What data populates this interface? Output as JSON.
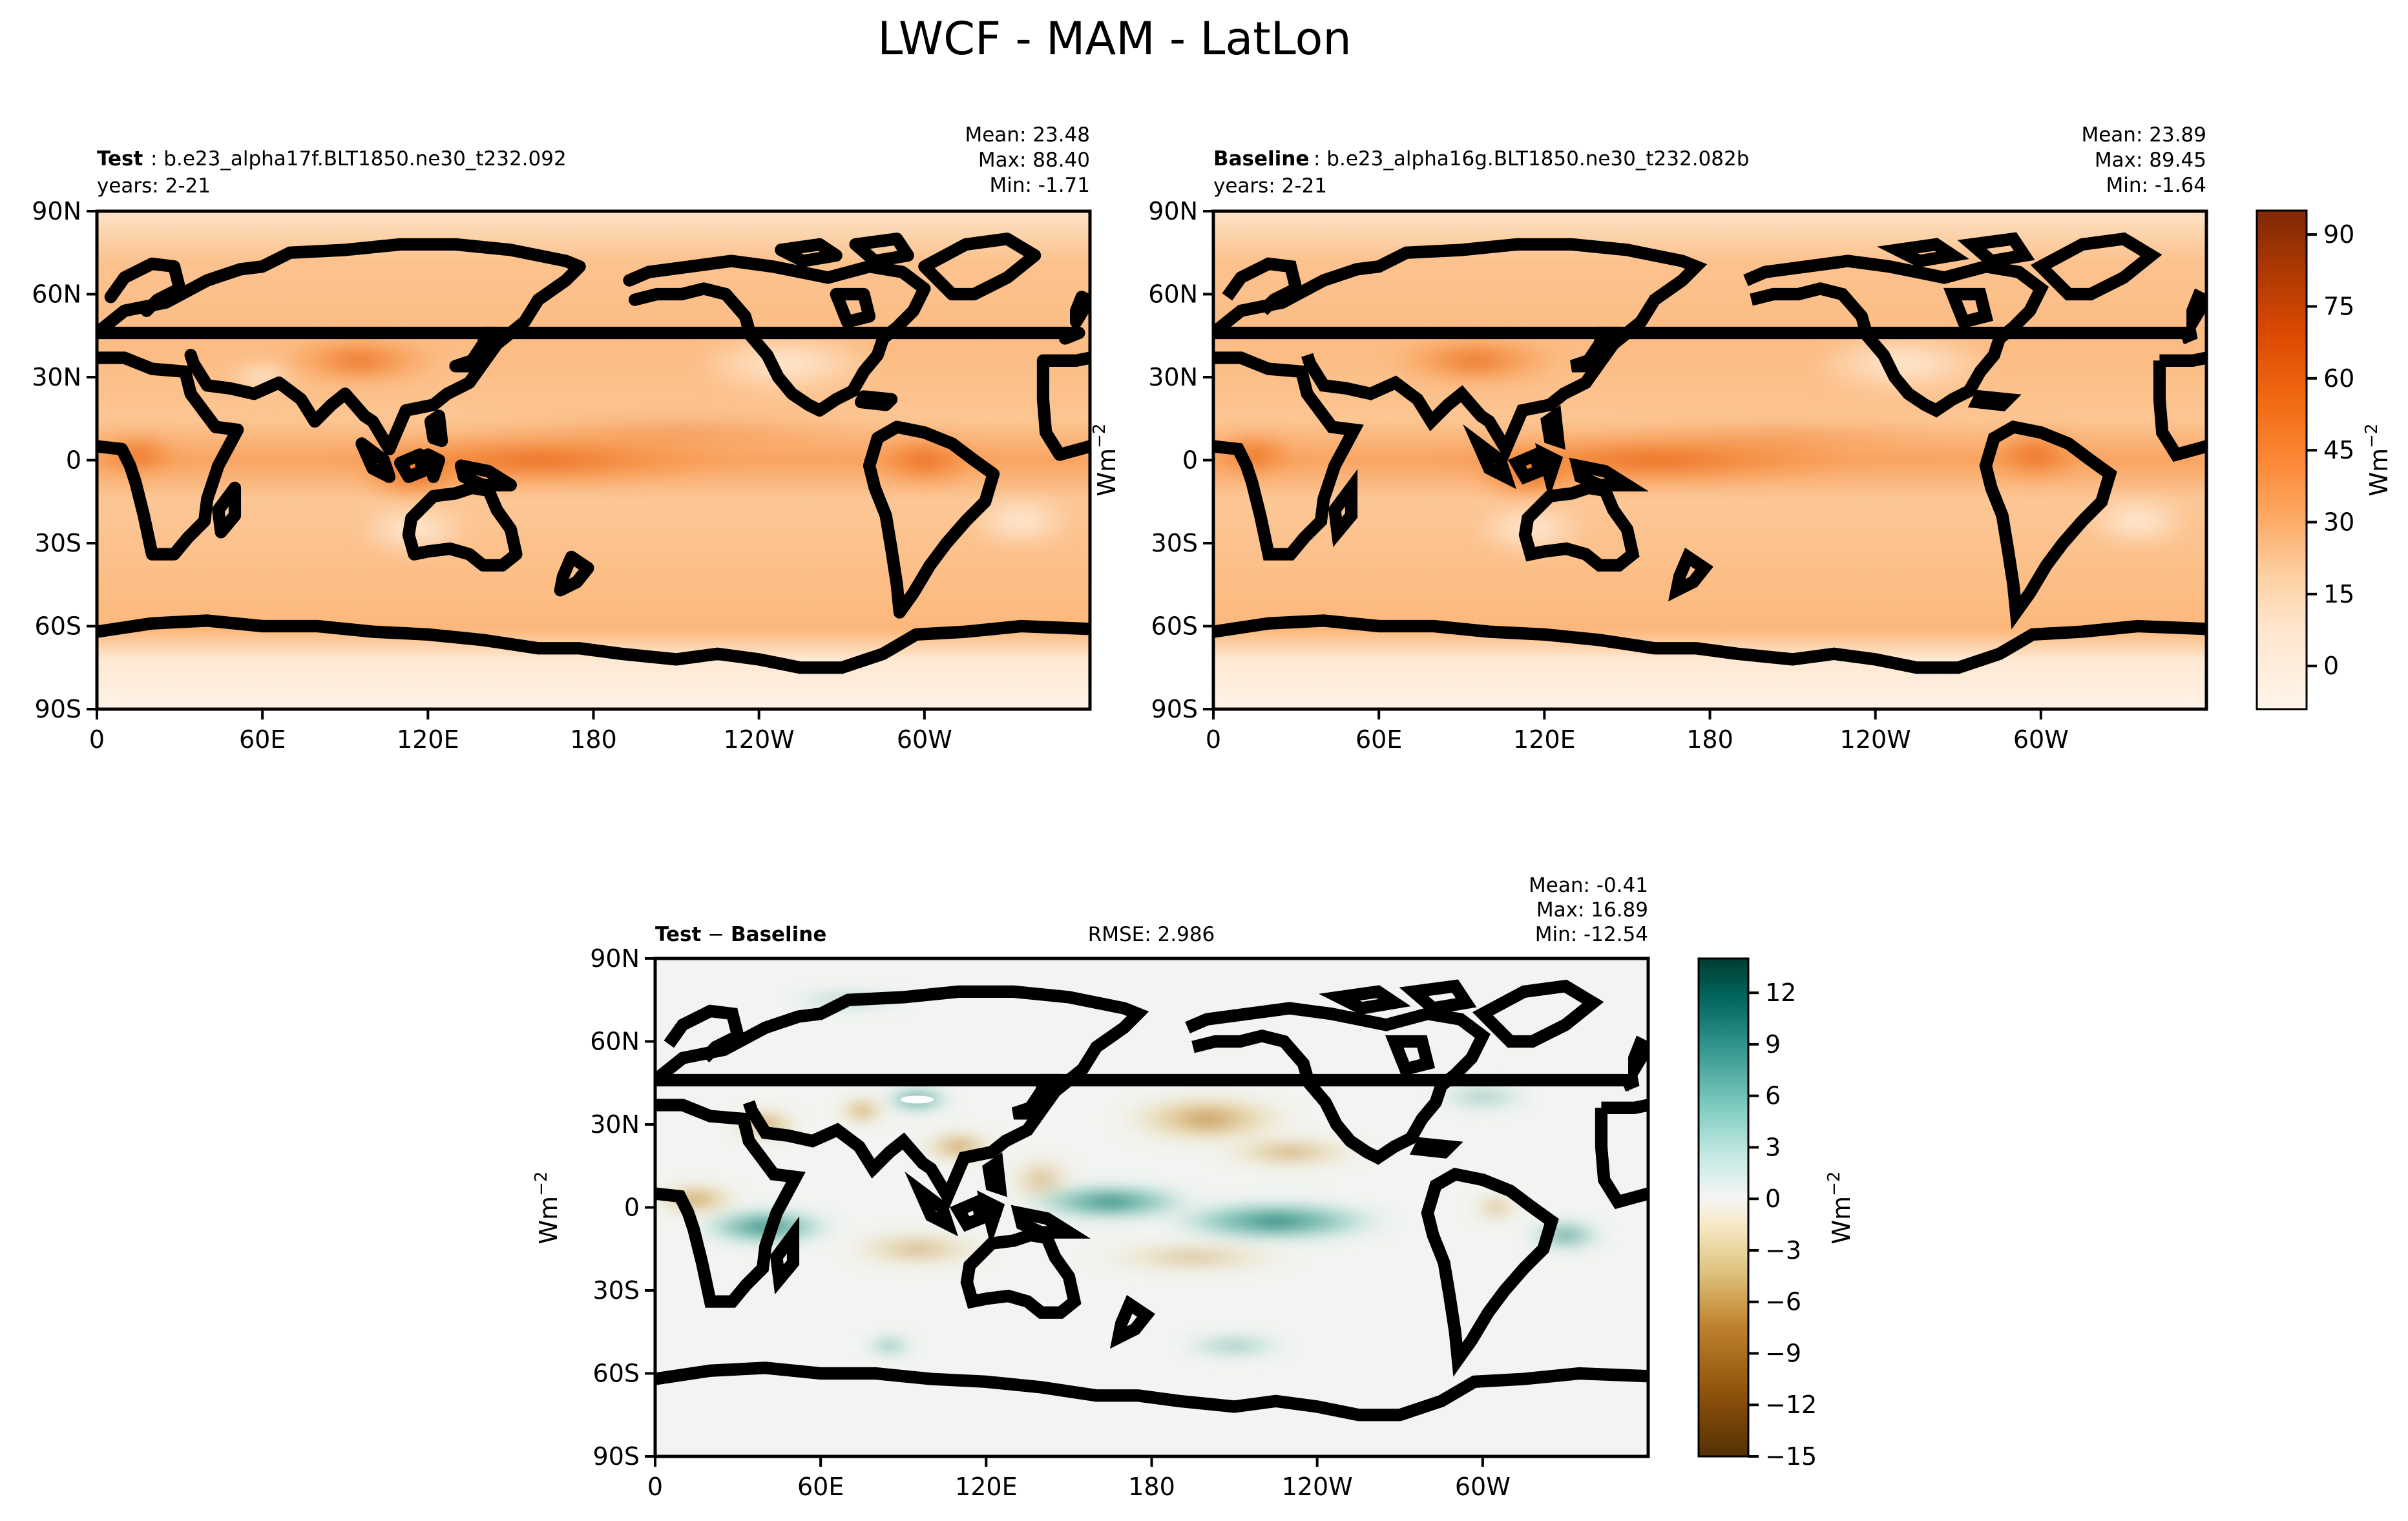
{
  "figure": {
    "title": "LWCF - MAM - LatLon"
  },
  "chart_data": [
    {
      "type": "heatmap",
      "panel": "test",
      "title_bold": "Test",
      "title_rest": ": b.e23_alpha17f.BLT1850.ne30_t232.092",
      "subtitle": "years: 2-21",
      "stats": {
        "mean": "Mean: 23.48",
        "max": "Max: 88.40",
        "min": "Min: -1.71"
      },
      "x_ticks": [
        "0",
        "60E",
        "120E",
        "180",
        "120W",
        "60W"
      ],
      "y_ticks": [
        "90N",
        "60N",
        "30N",
        "0",
        "30S",
        "60S",
        "90S"
      ],
      "xlim": [
        0,
        360
      ],
      "ylim": [
        -90,
        90
      ],
      "colormap": "Oranges",
      "value_range": [
        -9,
        95
      ],
      "fields": {
        "background": 20,
        "tropical_band_peak": 50,
        "polar_low": 3
      }
    },
    {
      "type": "heatmap",
      "panel": "baseline",
      "title_bold": "Baseline",
      "title_rest": ": b.e23_alpha16g.BLT1850.ne30_t232.082b",
      "subtitle": "years: 2-21",
      "stats": {
        "mean": "Mean: 23.89",
        "max": "Max: 89.45",
        "min": "Min: -1.64"
      },
      "x_ticks": [
        "0",
        "60E",
        "120E",
        "180",
        "120W",
        "60W"
      ],
      "y_ticks": [
        "90N",
        "60N",
        "30N",
        "0",
        "30S",
        "60S",
        "90S"
      ],
      "xlim": [
        0,
        360
      ],
      "ylim": [
        -90,
        90
      ],
      "ylabel": "Wm",
      "ylabel_sup": "−2",
      "colorbar": {
        "ticks": [
          "90",
          "75",
          "60",
          "45",
          "30",
          "15",
          "0"
        ],
        "tick_values": [
          90,
          75,
          60,
          45,
          30,
          15,
          0
        ],
        "range": [
          -9,
          95
        ],
        "label": "Wm",
        "label_sup": "−2",
        "colors": [
          "#fff5eb",
          "#fee6ce",
          "#fdd0a2",
          "#fdae6b",
          "#fd8d3c",
          "#f16913",
          "#d94801",
          "#a63603",
          "#7f2704"
        ]
      }
    },
    {
      "type": "heatmap",
      "panel": "difference",
      "title_bold_a": "Test",
      "title_mid": " − ",
      "title_bold_b": "Baseline",
      "rmse": "RMSE: 2.986",
      "stats": {
        "mean": "Mean: -0.41",
        "max": "Max: 16.89",
        "min": "Min: -12.54"
      },
      "x_ticks": [
        "0",
        "60E",
        "120E",
        "180",
        "120W",
        "60W"
      ],
      "y_ticks": [
        "90N",
        "60N",
        "30N",
        "0",
        "30S",
        "60S",
        "90S"
      ],
      "xlim": [
        0,
        360
      ],
      "ylim": [
        -90,
        90
      ],
      "ylabel": "Wm",
      "ylabel_sup": "−2",
      "colormap": "BrBG",
      "colorbar": {
        "ticks": [
          "12",
          "9",
          "6",
          "3",
          "0",
          "−3",
          "−6",
          "−9",
          "−12",
          "−15"
        ],
        "tick_values": [
          12,
          9,
          6,
          3,
          0,
          -3,
          -6,
          -9,
          -12,
          -15
        ],
        "range": [
          -15,
          14
        ],
        "label": "Wm",
        "label_sup": "−2",
        "colors": [
          "#543005",
          "#8c510a",
          "#bf812d",
          "#dfc27d",
          "#f6e8c3",
          "#f5f5f5",
          "#c7eae5",
          "#80cdc1",
          "#35978f",
          "#01665e",
          "#003c30"
        ]
      }
    }
  ]
}
